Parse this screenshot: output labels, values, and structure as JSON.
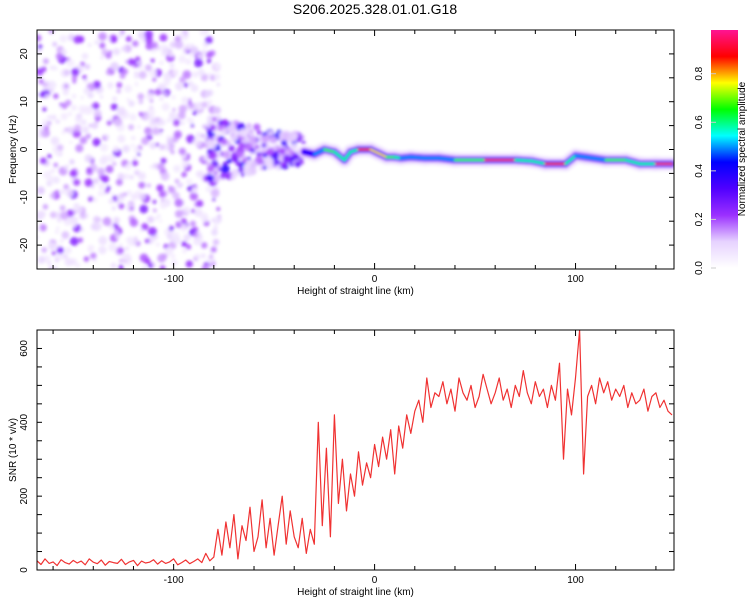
{
  "title": "S206.2025.328.01.01.G18",
  "chart_data": [
    {
      "type": "heatmap",
      "name": "spectrogram",
      "xlabel": "Height of straight line (km)",
      "ylabel": "Frequency (Hz)",
      "xlim": [
        -168,
        149
      ],
      "ylim": [
        -25,
        25
      ],
      "xticks": [
        -100,
        0,
        100
      ],
      "yticks": [
        -20,
        -10,
        0,
        10,
        20
      ],
      "colorbar": {
        "label": "Normalized spectral amplitude",
        "range": [
          0,
          1
        ],
        "ticks": [
          "0.0",
          "0.2",
          "0.4",
          "0.6",
          "0.8"
        ],
        "colors": [
          "#ffffff",
          "#e6d2ff",
          "#9b30ff",
          "#5000ff",
          "#0000ff",
          "#00ffff",
          "#00ff00",
          "#ffff00",
          "#ff0000",
          "#ff1493"
        ]
      },
      "ridge": {
        "x": [
          -35,
          -30,
          -25,
          -20,
          -15,
          -12,
          -8,
          -2,
          2,
          6,
          10,
          13,
          18,
          25,
          32,
          40,
          55,
          70,
          78,
          85,
          95,
          98,
          100,
          105,
          115,
          125,
          132,
          140,
          148
        ],
        "freq": [
          -0.5,
          -1,
          0,
          -0.5,
          -2.2,
          -0.5,
          0,
          0,
          -0.8,
          -1.6,
          -1.6,
          -1.8,
          -1.6,
          -1.8,
          -1.8,
          -2.2,
          -2.2,
          -2.2,
          -2.4,
          -3,
          -3,
          -2,
          -1.3,
          -1.6,
          -2.2,
          -2.2,
          -3,
          -3,
          -3
        ],
        "amp": [
          0.4,
          0.5,
          0.7,
          0.7,
          0.6,
          0.6,
          0.9,
          0.95,
          0.8,
          0.95,
          0.7,
          0.6,
          0.5,
          0.9,
          0.5,
          0.7,
          0.95,
          0.95,
          0.6,
          0.9,
          0.9,
          0.6,
          0.7,
          0.5,
          0.7,
          0.95,
          0.6,
          0.95,
          0.95
        ]
      },
      "noise_region_km": [
        -168,
        -85
      ],
      "scatter_region_km": [
        -85,
        -35
      ]
    },
    {
      "type": "line",
      "name": "snr",
      "xlabel": "Height of straight line (km)",
      "ylabel": "SNR (10 * v/v)",
      "xlim": [
        -168,
        149
      ],
      "ylim": [
        0,
        650
      ],
      "xticks": [
        -100,
        0,
        100
      ],
      "yticks": [
        0,
        200,
        400,
        600
      ],
      "color": "#f03232",
      "x_start": -168,
      "x_step": 2,
      "values": [
        25,
        15,
        30,
        18,
        22,
        12,
        28,
        20,
        16,
        26,
        19,
        24,
        14,
        30,
        21,
        17,
        27,
        13,
        23,
        20,
        18,
        29,
        15,
        22,
        26,
        12,
        24,
        19,
        21,
        28,
        16,
        25,
        18,
        22,
        30,
        14,
        20,
        27,
        17,
        23,
        30,
        20,
        45,
        25,
        35,
        110,
        40,
        130,
        60,
        150,
        30,
        120,
        80,
        170,
        50,
        90,
        190,
        60,
        140,
        40,
        120,
        200,
        70,
        160,
        90,
        60,
        140,
        45,
        110,
        70,
        400,
        120,
        330,
        90,
        420,
        180,
        300,
        160,
        260,
        200,
        320,
        230,
        290,
        250,
        340,
        280,
        360,
        300,
        380,
        260,
        390,
        330,
        420,
        370,
        430,
        460,
        400,
        520,
        440,
        480,
        470,
        510,
        450,
        490,
        430,
        520,
        480,
        460,
        500,
        440,
        470,
        530,
        490,
        450,
        480,
        520,
        460,
        490,
        440,
        500,
        470,
        540,
        480,
        450,
        510,
        470,
        490,
        440,
        500,
        460,
        560,
        300,
        490,
        420,
        520,
        650,
        260,
        470,
        500,
        450,
        520,
        480,
        510,
        460,
        490,
        470,
        500,
        440,
        480,
        450,
        460,
        490,
        430,
        470,
        480,
        440,
        460,
        430,
        420
      ]
    }
  ]
}
